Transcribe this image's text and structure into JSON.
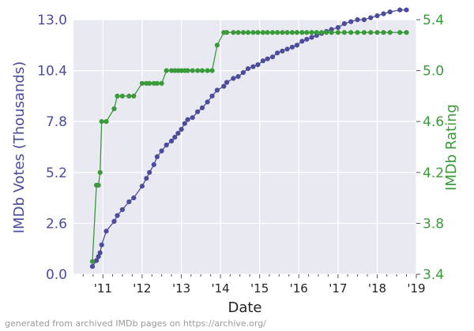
{
  "footnote": "generated from archived IMDb pages on https://archive.org/",
  "colors": {
    "votes": "#4c4c9c",
    "rating": "#3a9a3a",
    "plot_bg": "#e9e9f1",
    "grid": "#ffffff"
  },
  "chart_data": {
    "type": "line",
    "xlabel": "Date",
    "ylabel_left": "IMDb Votes (Thousands)",
    "ylabel_right": "IMDb Rating",
    "ylim_left": [
      0.0,
      13.0
    ],
    "ylim_right": [
      3.4,
      5.4
    ],
    "xlim": [
      "2010-04-01",
      "2019-01-01"
    ],
    "x_ticks": [
      {
        "date": "2011-01-01",
        "label": "'11"
      },
      {
        "date": "2012-01-01",
        "label": "'12"
      },
      {
        "date": "2013-01-01",
        "label": "'13"
      },
      {
        "date": "2014-01-01",
        "label": "'14"
      },
      {
        "date": "2015-01-01",
        "label": "'15"
      },
      {
        "date": "2016-01-01",
        "label": "'16"
      },
      {
        "date": "2017-01-01",
        "label": "'17"
      },
      {
        "date": "2018-01-01",
        "label": "'18"
      },
      {
        "date": "2019-01-01",
        "label": "'19"
      }
    ],
    "y_ticks_left": [
      "0.0",
      "2.6",
      "5.2",
      "7.8",
      "10.4",
      "13.0"
    ],
    "y_ticks_right": [
      "3.4",
      "3.8",
      "4.2",
      "4.6",
      "5.0",
      "5.4"
    ],
    "grid": true,
    "series": [
      {
        "name": "IMDb Votes (Thousands)",
        "axis": "left",
        "x": [
          "2010-09-25",
          "2010-11-01",
          "2010-11-20",
          "2010-12-05",
          "2010-12-20",
          "2011-02-01",
          "2011-04-15",
          "2011-05-15",
          "2011-07-01",
          "2011-09-01",
          "2011-10-15",
          "2012-01-01",
          "2012-02-10",
          "2012-03-10",
          "2012-04-20",
          "2012-05-20",
          "2012-07-01",
          "2012-08-15",
          "2012-10-01",
          "2012-11-01",
          "2012-12-01",
          "2013-01-01",
          "2013-02-01",
          "2013-03-01",
          "2013-04-15",
          "2013-06-01",
          "2013-07-15",
          "2013-09-01",
          "2013-10-15",
          "2013-12-01",
          "2014-02-01",
          "2014-03-01",
          "2014-05-01",
          "2014-06-15",
          "2014-08-01",
          "2014-09-15",
          "2014-11-01",
          "2014-12-15",
          "2015-02-01",
          "2015-03-15",
          "2015-05-01",
          "2015-06-15",
          "2015-08-01",
          "2015-09-15",
          "2015-11-01",
          "2015-12-15",
          "2016-02-01",
          "2016-03-15",
          "2016-05-01",
          "2016-06-15",
          "2016-08-01",
          "2016-09-15",
          "2016-11-01",
          "2017-01-01",
          "2017-03-01",
          "2017-05-01",
          "2017-07-01",
          "2017-09-01",
          "2017-11-01",
          "2018-01-01",
          "2018-03-01",
          "2018-05-01",
          "2018-08-01",
          "2018-10-01"
        ],
        "y": [
          0.4,
          0.7,
          0.9,
          1.1,
          1.5,
          2.2,
          2.7,
          3.0,
          3.3,
          3.7,
          3.9,
          4.5,
          4.9,
          5.2,
          5.6,
          6.0,
          6.3,
          6.6,
          6.8,
          7.0,
          7.2,
          7.4,
          7.7,
          7.9,
          8.0,
          8.3,
          8.5,
          8.8,
          9.1,
          9.4,
          9.6,
          9.8,
          10.0,
          10.1,
          10.3,
          10.5,
          10.6,
          10.7,
          10.9,
          11.0,
          11.1,
          11.3,
          11.4,
          11.5,
          11.6,
          11.7,
          11.9,
          12.0,
          12.1,
          12.2,
          12.3,
          12.4,
          12.5,
          12.6,
          12.8,
          12.9,
          13.0,
          13.0,
          13.1,
          13.2,
          13.3,
          13.4,
          13.5,
          13.5
        ]
      },
      {
        "name": "IMDb Rating",
        "axis": "right",
        "x": [
          "2010-09-25",
          "2010-11-01",
          "2010-11-20",
          "2010-12-05",
          "2010-12-20",
          "2011-02-01",
          "2011-04-15",
          "2011-05-15",
          "2011-07-01",
          "2011-09-01",
          "2011-10-15",
          "2012-01-01",
          "2012-02-10",
          "2012-03-10",
          "2012-04-20",
          "2012-05-20",
          "2012-07-01",
          "2012-08-15",
          "2012-10-01",
          "2012-11-01",
          "2012-12-01",
          "2013-01-01",
          "2013-02-01",
          "2013-03-01",
          "2013-04-15",
          "2013-06-01",
          "2013-07-15",
          "2013-09-01",
          "2013-10-15",
          "2013-12-01",
          "2014-02-01",
          "2014-03-01",
          "2014-05-01",
          "2014-06-15",
          "2014-08-01",
          "2014-09-15",
          "2014-11-01",
          "2014-12-15",
          "2015-02-01",
          "2015-03-15",
          "2015-05-01",
          "2015-06-15",
          "2015-08-01",
          "2015-09-15",
          "2015-11-01",
          "2015-12-15",
          "2016-02-01",
          "2016-03-15",
          "2016-05-01",
          "2016-06-15",
          "2016-08-01",
          "2016-09-15",
          "2016-11-01",
          "2017-01-01",
          "2017-03-01",
          "2017-05-01",
          "2017-07-01",
          "2017-09-01",
          "2017-11-01",
          "2018-01-01",
          "2018-03-01",
          "2018-05-01",
          "2018-08-01",
          "2018-10-01"
        ],
        "y": [
          3.5,
          4.1,
          4.1,
          4.2,
          4.6,
          4.6,
          4.7,
          4.8,
          4.8,
          4.8,
          4.8,
          4.9,
          4.9,
          4.9,
          4.9,
          4.9,
          4.9,
          5.0,
          5.0,
          5.0,
          5.0,
          5.0,
          5.0,
          5.0,
          5.0,
          5.0,
          5.0,
          5.0,
          5.0,
          5.2,
          5.3,
          5.3,
          5.3,
          5.3,
          5.3,
          5.3,
          5.3,
          5.3,
          5.3,
          5.3,
          5.3,
          5.3,
          5.3,
          5.3,
          5.3,
          5.3,
          5.3,
          5.3,
          5.3,
          5.3,
          5.3,
          5.3,
          5.3,
          5.3,
          5.3,
          5.3,
          5.3,
          5.3,
          5.3,
          5.3,
          5.3,
          5.3,
          5.3,
          5.3
        ]
      }
    ]
  }
}
